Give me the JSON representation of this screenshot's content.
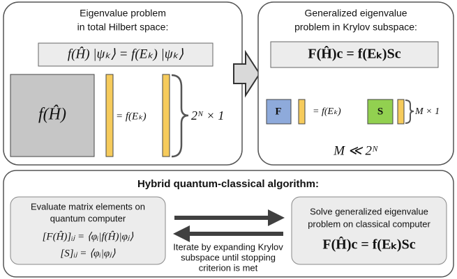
{
  "left_panel": {
    "title": [
      "Eigenvalue problem",
      "in total Hilbert space:"
    ],
    "equation": "f(Ĥ) |ψₖ⟩ = f(Eₖ) |ψₖ⟩",
    "matrix_label": "f(Ĥ)",
    "rhs_label": "= f(Eₖ)",
    "dimension": "2ᴺ × 1"
  },
  "right_panel": {
    "title": [
      "Generalized eigenvalue",
      "problem in Krylov subspace:"
    ],
    "equation": "F(Ĥ)c = f(Eₖ)Sc",
    "matrix_f": "F",
    "rhs_label": "= f(Eₖ)",
    "matrix_s": "S",
    "dimension": "M × 1",
    "condition": "M ≪ 2ᴺ"
  },
  "bottom_panel": {
    "title": "Hybrid quantum-classical algorithm:",
    "quantum_box": {
      "text": [
        "Evaluate matrix elements on",
        "quantum computer"
      ],
      "equations": [
        "[F(Ĥ)]ᵢⱼ = ⟨φᵢ|f(Ĥ)|φⱼ⟩",
        "[S]ᵢⱼ = ⟨φᵢ|φⱼ⟩"
      ]
    },
    "classical_box": {
      "text": [
        "Solve generalized eigenvalue",
        "problem on classical computer"
      ],
      "equation": "F(Ĥ)c = f(Eₖ)Sc"
    },
    "iteration_note": [
      "Iterate by expanding Krylov",
      "subspace until stopping",
      "criterion is met"
    ]
  }
}
